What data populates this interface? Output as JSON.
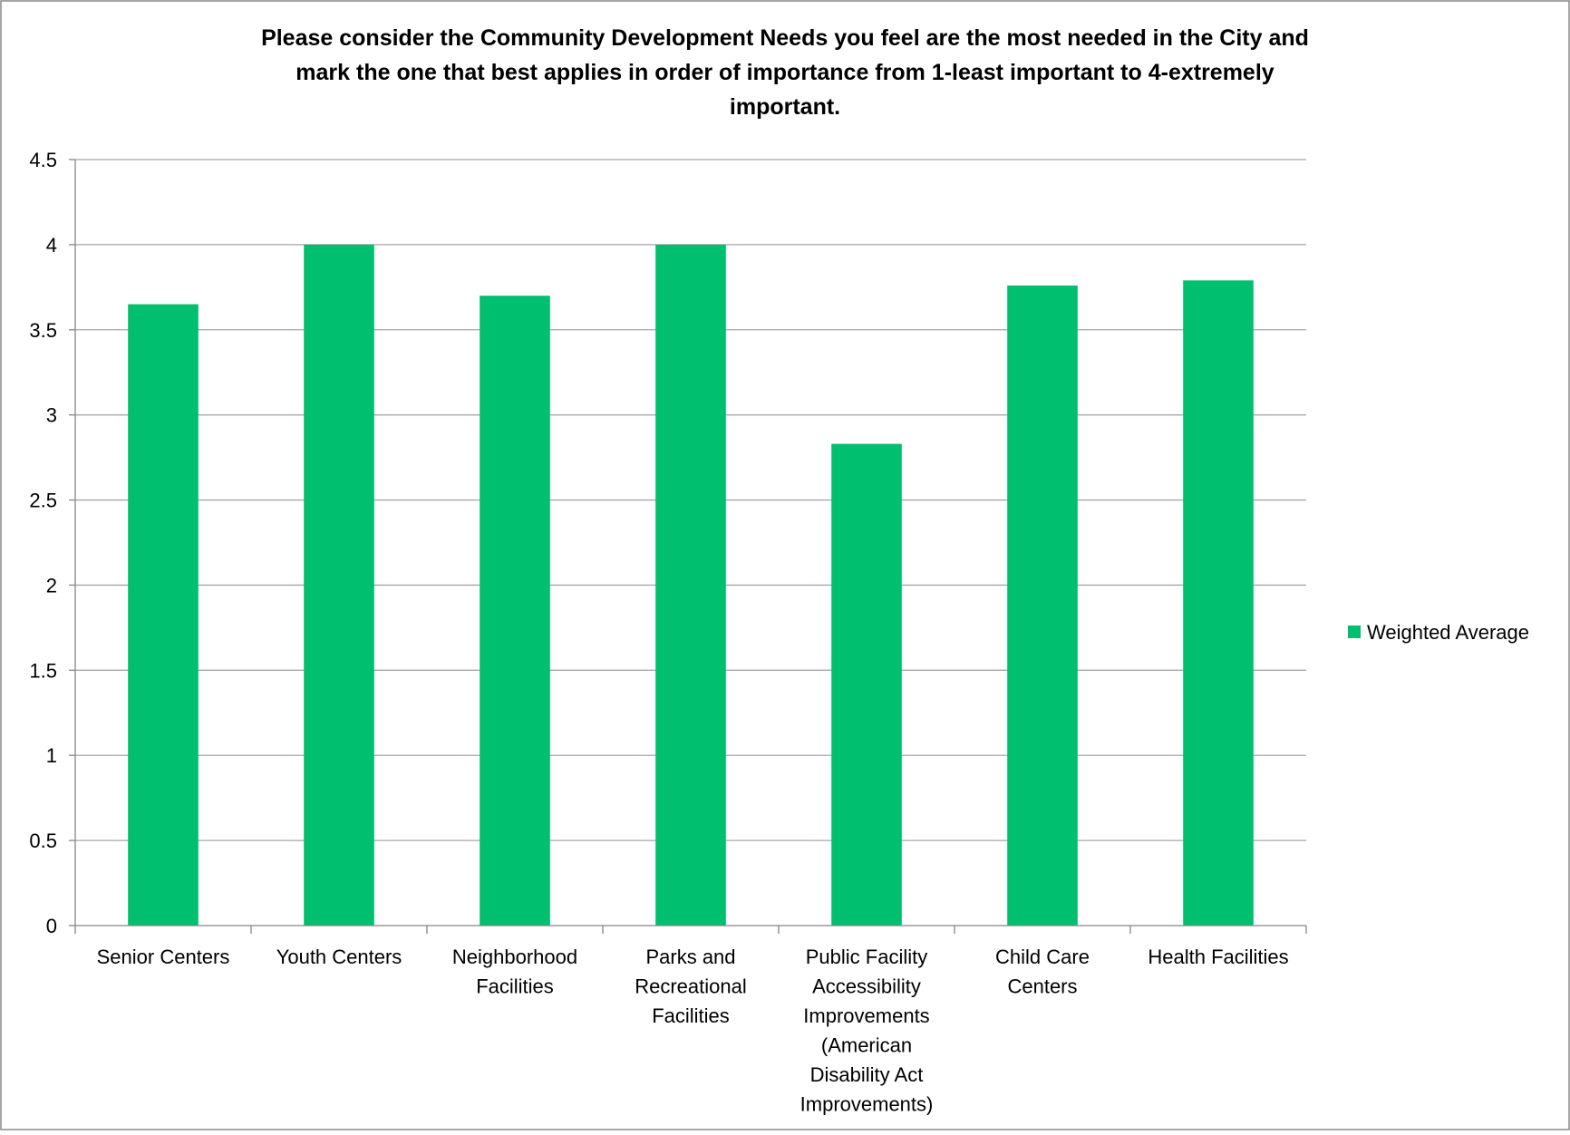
{
  "chart_data": {
    "type": "bar",
    "title_lines": [
      "Please consider the Community Development Needs you feel are the most needed in the City and",
      "mark the one that best applies in order of importance from 1-least important to 4-extremely",
      "important."
    ],
    "categories": [
      [
        "Senior Centers"
      ],
      [
        "Youth Centers"
      ],
      [
        "Neighborhood",
        "Facilities"
      ],
      [
        "Parks and",
        "Recreational",
        "Facilities"
      ],
      [
        "Public Facility",
        "Accessibility",
        "Improvements",
        "(American",
        "Disability Act",
        "Improvements)"
      ],
      [
        "Child Care",
        "Centers"
      ],
      [
        "Health Facilities"
      ]
    ],
    "series": [
      {
        "name": "Weighted Average",
        "values": [
          3.65,
          4.0,
          3.7,
          4.0,
          2.83,
          3.76,
          3.79
        ]
      }
    ],
    "ylim": [
      0,
      4.5
    ],
    "yticks": [
      "0",
      "0.5",
      "1",
      "1.5",
      "2",
      "2.5",
      "3",
      "3.5",
      "4",
      "4.5"
    ],
    "grid": true,
    "legend_position": "right",
    "colors": {
      "bar": "#00BF6F",
      "grid": "#A6A6A6",
      "axis": "#868686",
      "text": "#000000",
      "border": "#888888"
    }
  }
}
